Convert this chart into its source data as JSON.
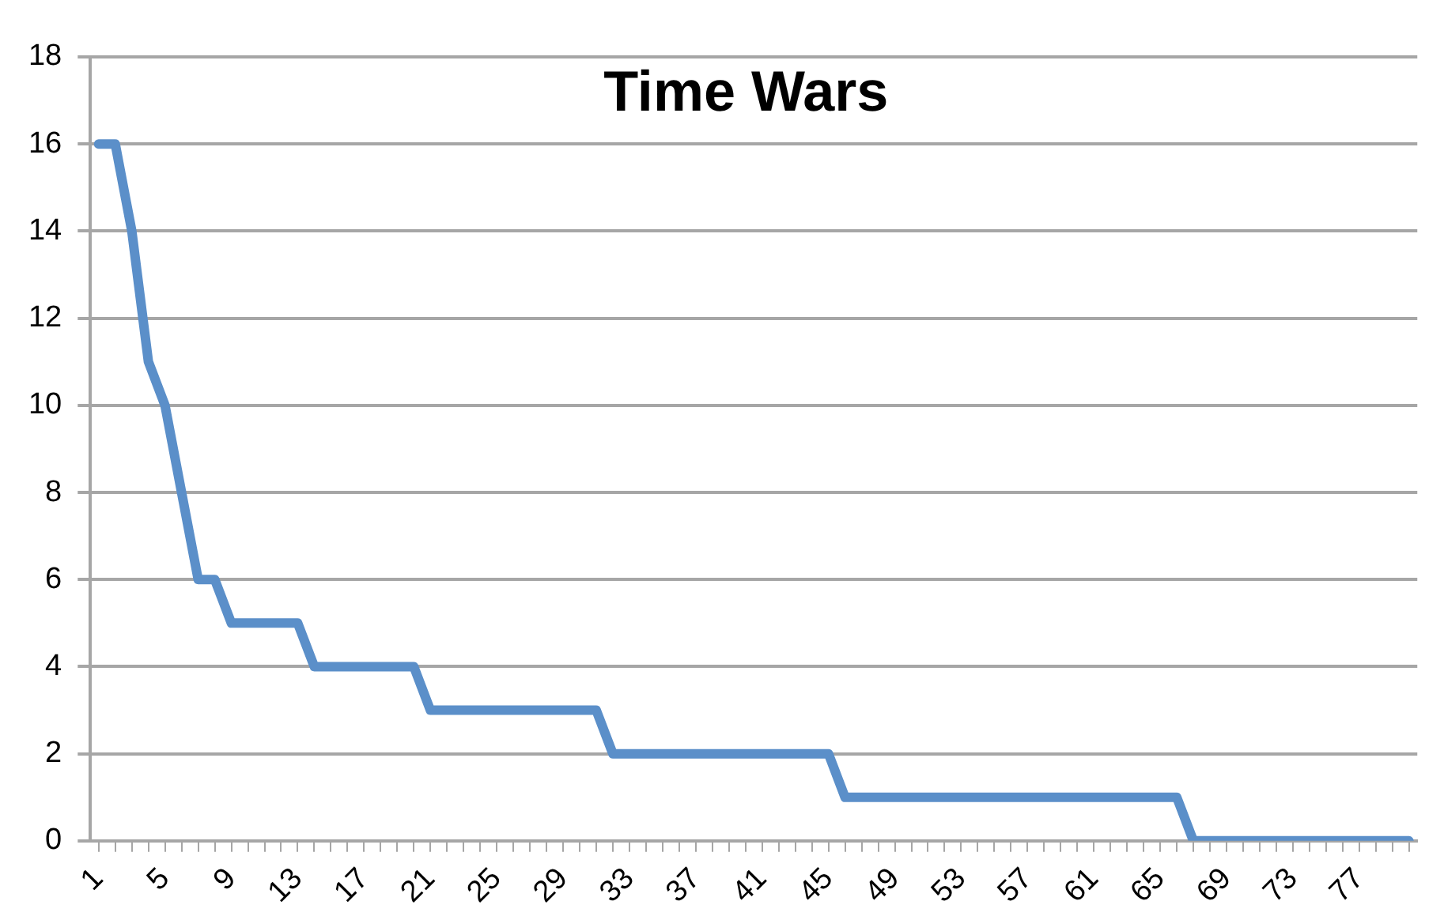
{
  "chart_data": {
    "type": "line",
    "title": "Time Wars",
    "categories": [
      "1",
      null,
      null,
      null,
      "5",
      null,
      null,
      null,
      "9",
      null,
      null,
      null,
      "13",
      null,
      null,
      null,
      "17",
      null,
      null,
      null,
      "21",
      null,
      null,
      null,
      "25",
      null,
      null,
      null,
      "29",
      null,
      null,
      null,
      "33",
      null,
      null,
      null,
      "37",
      null,
      null,
      null,
      "41",
      null,
      null,
      null,
      "45",
      null,
      null,
      null,
      "49",
      null,
      null,
      null,
      "53",
      null,
      null,
      null,
      "57",
      null,
      null,
      null,
      "61",
      null,
      null,
      null,
      "65",
      null,
      null,
      null,
      "69",
      null,
      null,
      null,
      "73",
      null,
      null,
      null,
      "77",
      null,
      null,
      null
    ],
    "series": [
      {
        "color": "#5b8fc9",
        "values": [
          16,
          16,
          14,
          11,
          10,
          8,
          6,
          6,
          5,
          5,
          5,
          5,
          5,
          4,
          4,
          4,
          4,
          4,
          4,
          4,
          3,
          3,
          3,
          3,
          3,
          3,
          3,
          3,
          3,
          3,
          3,
          2,
          2,
          2,
          2,
          2,
          2,
          2,
          2,
          2,
          2,
          2,
          2,
          2,
          2,
          1,
          1,
          1,
          1,
          1,
          1,
          1,
          1,
          1,
          1,
          1,
          1,
          1,
          1,
          1,
          1,
          1,
          1,
          1,
          1,
          1,
          0,
          0,
          0,
          0,
          0,
          0,
          0,
          0,
          0,
          0,
          0,
          0,
          0,
          0
        ]
      }
    ],
    "ylim": [
      0,
      18
    ],
    "yticks": [
      0,
      2,
      4,
      6,
      8,
      10,
      12,
      14,
      16,
      18
    ],
    "grid": "y",
    "legend": false,
    "marker": "none",
    "line_style": "solid"
  }
}
